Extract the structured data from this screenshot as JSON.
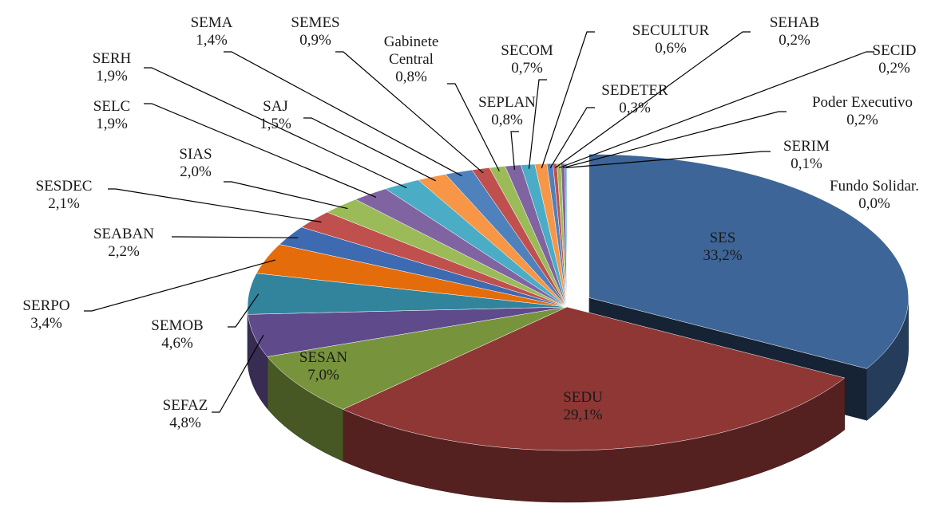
{
  "chart_data": {
    "type": "pie3d",
    "categories": [
      "SES",
      "SEDU",
      "SESAN",
      "SEFAZ",
      "SEMOB",
      "SERPO",
      "SEABAN",
      "SESDEC",
      "SIAS",
      "SELC",
      "SERH",
      "SAJ",
      "SEMA",
      "SEMES",
      "Gabinete Central",
      "SEPLAN",
      "SECOM",
      "SECULTUR",
      "SEDETER",
      "SEHAB",
      "SECID",
      "Poder Executivo",
      "SERIM",
      "Fundo Solidar."
    ],
    "values": [
      33.2,
      29.1,
      7.0,
      4.8,
      4.6,
      3.4,
      2.2,
      2.1,
      2.0,
      1.9,
      1.9,
      1.5,
      1.4,
      0.9,
      0.8,
      0.8,
      0.7,
      0.6,
      0.3,
      0.2,
      0.2,
      0.2,
      0.1,
      0.0
    ],
    "value_labels": [
      "33,2%",
      "29,1%",
      "7,0%",
      "4,8%",
      "4,6%",
      "3,4%",
      "2,2%",
      "2,1%",
      "2,0%",
      "1,9%",
      "1,9%",
      "1,5%",
      "1,4%",
      "0,9%",
      "0,8%",
      "0,8%",
      "0,7%",
      "0,6%",
      "0,3%",
      "0,2%",
      "0,2%",
      "0,2%",
      "0,1%",
      "0,0%"
    ],
    "colors": [
      "#3d6597",
      "#8e3735",
      "#77933c",
      "#5f4a8b",
      "#31849b",
      "#e46c0a",
      "#3d6ab0",
      "#c0504d",
      "#9bbb59",
      "#8064a2",
      "#4bacc6",
      "#f79646",
      "#4f81bd",
      "#c0504d",
      "#9bbb59",
      "#8064a2",
      "#4bacc6",
      "#f79646",
      "#4f81bd",
      "#c0504d",
      "#9bbb59",
      "#8064a2",
      "#4bacc6",
      "#f79646"
    ],
    "exploded": "SES"
  }
}
